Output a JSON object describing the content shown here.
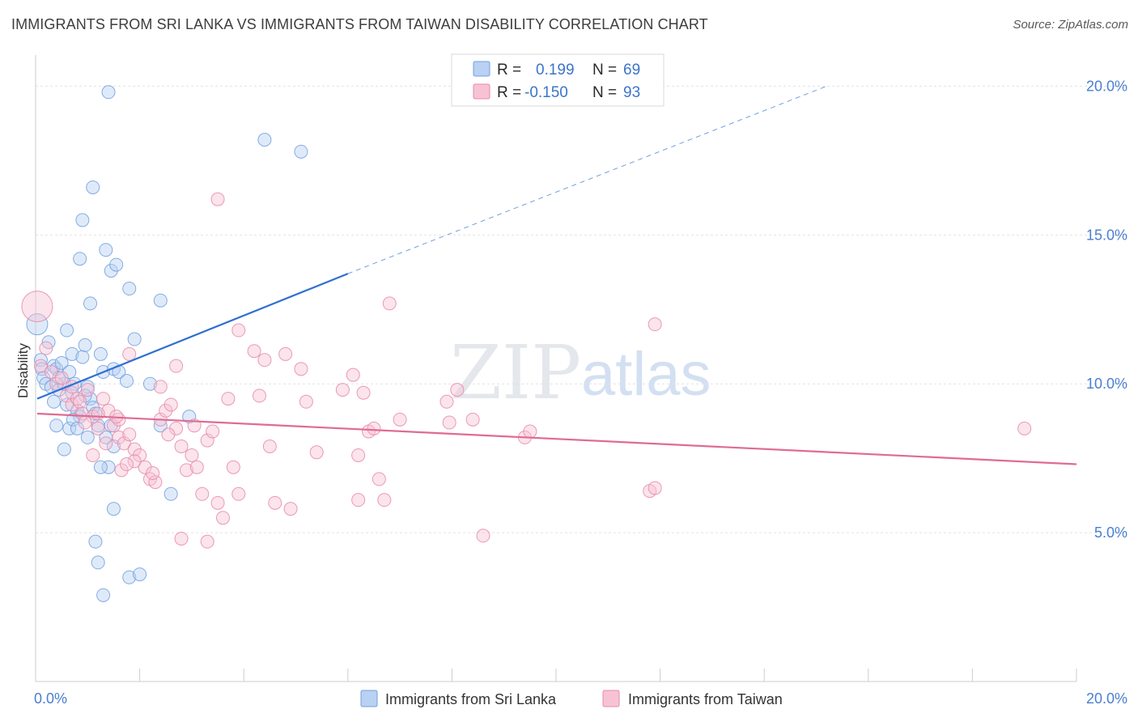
{
  "header": {
    "title": "IMMIGRANTS FROM SRI LANKA VS IMMIGRANTS FROM TAIWAN DISABILITY CORRELATION CHART",
    "source": "Source: ZipAtlas.com"
  },
  "watermark": {
    "zip": "ZIP",
    "atlas": "atlas"
  },
  "legend": {
    "r_label": "R =",
    "n_label": "N =",
    "rows": [
      {
        "r": "0.199",
        "n": "69",
        "color": "#6fa0e0",
        "fill": "#b9d1f2"
      },
      {
        "r": "-0.150",
        "n": "93",
        "color": "#e889a8",
        "fill": "#f7c3d4"
      }
    ]
  },
  "chart_data": {
    "type": "scatter",
    "title": "IMMIGRANTS FROM SRI LANKA VS IMMIGRANTS FROM TAIWAN DISABILITY CORRELATION CHART",
    "xlabel": "",
    "ylabel": "Disability",
    "xlim": [
      0,
      20
    ],
    "ylim": [
      0,
      20.8
    ],
    "x_tick_labels": [
      "0.0%",
      "20.0%"
    ],
    "y_ticks": [
      {
        "value": 5,
        "label": "5.0%"
      },
      {
        "value": 10,
        "label": "10.0%"
      },
      {
        "value": 15,
        "label": "15.0%"
      },
      {
        "value": 20,
        "label": "20.0%"
      }
    ],
    "grid": true,
    "series": [
      {
        "name": "Immigrants from Sri Lanka",
        "color": "#6fa0e0",
        "fill": "#b9d1f2",
        "trend": {
          "x0": 0.03,
          "y0": 9.5,
          "x1": 6.0,
          "y1": 13.7,
          "dash_to_x": 15.2,
          "dash_to_y": 20.0
        },
        "points": [
          [
            0.03,
            12.0
          ],
          [
            0.1,
            10.8
          ],
          [
            0.12,
            10.5
          ],
          [
            0.15,
            10.2
          ],
          [
            0.2,
            10.0
          ],
          [
            0.25,
            11.4
          ],
          [
            0.3,
            9.9
          ],
          [
            0.35,
            10.6
          ],
          [
            0.4,
            10.5
          ],
          [
            0.45,
            9.8
          ],
          [
            0.5,
            10.7
          ],
          [
            0.55,
            10.0
          ],
          [
            0.6,
            11.8
          ],
          [
            0.65,
            10.4
          ],
          [
            0.7,
            11.0
          ],
          [
            0.75,
            10.0
          ],
          [
            0.8,
            9.1
          ],
          [
            0.85,
            8.9
          ],
          [
            0.9,
            10.9
          ],
          [
            0.95,
            11.3
          ],
          [
            1.0,
            9.9
          ],
          [
            1.05,
            9.5
          ],
          [
            1.1,
            9.2
          ],
          [
            1.15,
            9.0
          ],
          [
            1.2,
            8.6
          ],
          [
            1.25,
            11.0
          ],
          [
            1.3,
            10.4
          ],
          [
            1.35,
            8.2
          ],
          [
            1.4,
            7.2
          ],
          [
            1.45,
            8.6
          ],
          [
            0.35,
            9.4
          ],
          [
            0.4,
            8.6
          ],
          [
            0.55,
            7.8
          ],
          [
            0.65,
            8.5
          ],
          [
            0.72,
            8.8
          ],
          [
            0.9,
            15.5
          ],
          [
            0.85,
            14.2
          ],
          [
            1.05,
            12.7
          ],
          [
            1.35,
            14.5
          ],
          [
            1.45,
            13.8
          ],
          [
            1.55,
            14.0
          ],
          [
            1.8,
            13.2
          ],
          [
            1.9,
            11.5
          ],
          [
            1.5,
            10.5
          ],
          [
            1.6,
            10.4
          ],
          [
            1.75,
            10.1
          ],
          [
            2.2,
            10.0
          ],
          [
            2.4,
            12.8
          ],
          [
            2.4,
            8.6
          ],
          [
            1.1,
            16.6
          ],
          [
            1.4,
            19.8
          ],
          [
            4.4,
            18.2
          ],
          [
            5.1,
            17.8
          ],
          [
            1.5,
            5.8
          ],
          [
            1.15,
            4.7
          ],
          [
            1.2,
            4.0
          ],
          [
            1.3,
            2.9
          ],
          [
            1.8,
            3.5
          ],
          [
            2.0,
            3.6
          ],
          [
            2.6,
            6.3
          ],
          [
            1.5,
            7.9
          ],
          [
            1.25,
            7.2
          ],
          [
            0.7,
            9.7
          ],
          [
            0.95,
            9.6
          ],
          [
            1.0,
            8.2
          ],
          [
            0.6,
            9.3
          ],
          [
            0.8,
            8.5
          ],
          [
            2.95,
            8.9
          ],
          [
            0.45,
            10.2
          ]
        ]
      },
      {
        "name": "Immigrants from Taiwan",
        "color": "#e889a8",
        "fill": "#f7c3d4",
        "trend": {
          "x0": 0.03,
          "y0": 9.0,
          "x1": 20.0,
          "y1": 7.3
        },
        "points": [
          [
            0.03,
            12.6
          ],
          [
            0.1,
            10.6
          ],
          [
            0.2,
            11.2
          ],
          [
            0.3,
            10.4
          ],
          [
            0.4,
            10.0
          ],
          [
            0.5,
            10.2
          ],
          [
            0.6,
            9.6
          ],
          [
            0.7,
            9.3
          ],
          [
            0.8,
            9.5
          ],
          [
            0.9,
            9.0
          ],
          [
            1.0,
            9.8
          ],
          [
            1.1,
            8.9
          ],
          [
            1.2,
            8.5
          ],
          [
            1.3,
            9.5
          ],
          [
            1.4,
            9.1
          ],
          [
            1.5,
            8.6
          ],
          [
            1.6,
            8.2
          ],
          [
            1.7,
            8.0
          ],
          [
            1.8,
            8.3
          ],
          [
            1.9,
            7.8
          ],
          [
            2.0,
            7.6
          ],
          [
            2.1,
            7.2
          ],
          [
            2.2,
            6.8
          ],
          [
            2.3,
            6.7
          ],
          [
            2.4,
            8.8
          ],
          [
            2.5,
            9.1
          ],
          [
            2.6,
            9.3
          ],
          [
            2.7,
            8.5
          ],
          [
            2.8,
            7.9
          ],
          [
            2.9,
            7.1
          ],
          [
            3.0,
            7.6
          ],
          [
            3.1,
            7.2
          ],
          [
            3.2,
            6.3
          ],
          [
            3.3,
            8.1
          ],
          [
            3.4,
            8.4
          ],
          [
            3.5,
            6.0
          ],
          [
            3.6,
            5.5
          ],
          [
            3.7,
            9.5
          ],
          [
            3.8,
            7.2
          ],
          [
            3.9,
            6.3
          ],
          [
            1.8,
            11.0
          ],
          [
            2.7,
            10.6
          ],
          [
            2.4,
            9.9
          ],
          [
            3.5,
            16.2
          ],
          [
            3.9,
            11.8
          ],
          [
            4.2,
            11.1
          ],
          [
            4.4,
            10.8
          ],
          [
            4.8,
            11.0
          ],
          [
            5.1,
            10.5
          ],
          [
            5.2,
            9.4
          ],
          [
            4.3,
            9.6
          ],
          [
            4.5,
            7.9
          ],
          [
            4.6,
            6.0
          ],
          [
            4.9,
            5.8
          ],
          [
            5.4,
            7.7
          ],
          [
            5.9,
            9.8
          ],
          [
            6.1,
            10.3
          ],
          [
            6.3,
            9.7
          ],
          [
            6.2,
            7.6
          ],
          [
            6.4,
            8.4
          ],
          [
            6.8,
            12.7
          ],
          [
            6.5,
            8.5
          ],
          [
            6.6,
            6.8
          ],
          [
            6.7,
            6.1
          ],
          [
            7.0,
            8.8
          ],
          [
            7.9,
            9.4
          ],
          [
            7.95,
            8.7
          ],
          [
            8.1,
            9.8
          ],
          [
            8.4,
            8.8
          ],
          [
            8.6,
            4.9
          ],
          [
            9.4,
            8.2
          ],
          [
            9.5,
            8.4
          ],
          [
            11.9,
            12.0
          ],
          [
            11.8,
            6.4
          ],
          [
            11.9,
            6.5
          ],
          [
            19.0,
            8.5
          ],
          [
            2.8,
            4.8
          ],
          [
            3.3,
            4.7
          ],
          [
            6.2,
            6.1
          ],
          [
            1.6,
            8.8
          ],
          [
            1.1,
            7.6
          ],
          [
            1.9,
            7.4
          ],
          [
            0.85,
            9.4
          ],
          [
            1.2,
            9.0
          ],
          [
            2.25,
            7.0
          ],
          [
            1.65,
            7.1
          ],
          [
            0.95,
            8.7
          ],
          [
            2.55,
            8.3
          ],
          [
            3.05,
            8.6
          ],
          [
            0.7,
            9.9
          ],
          [
            1.35,
            8.0
          ],
          [
            1.55,
            8.9
          ],
          [
            1.75,
            7.3
          ]
        ]
      }
    ]
  },
  "bottom_legend": [
    {
      "label": "Immigrants from Sri Lanka",
      "color": "#6fa0e0",
      "fill": "#b9d1f2"
    },
    {
      "label": "Immigrants from Taiwan",
      "color": "#e889a8",
      "fill": "#f7c3d4"
    }
  ]
}
